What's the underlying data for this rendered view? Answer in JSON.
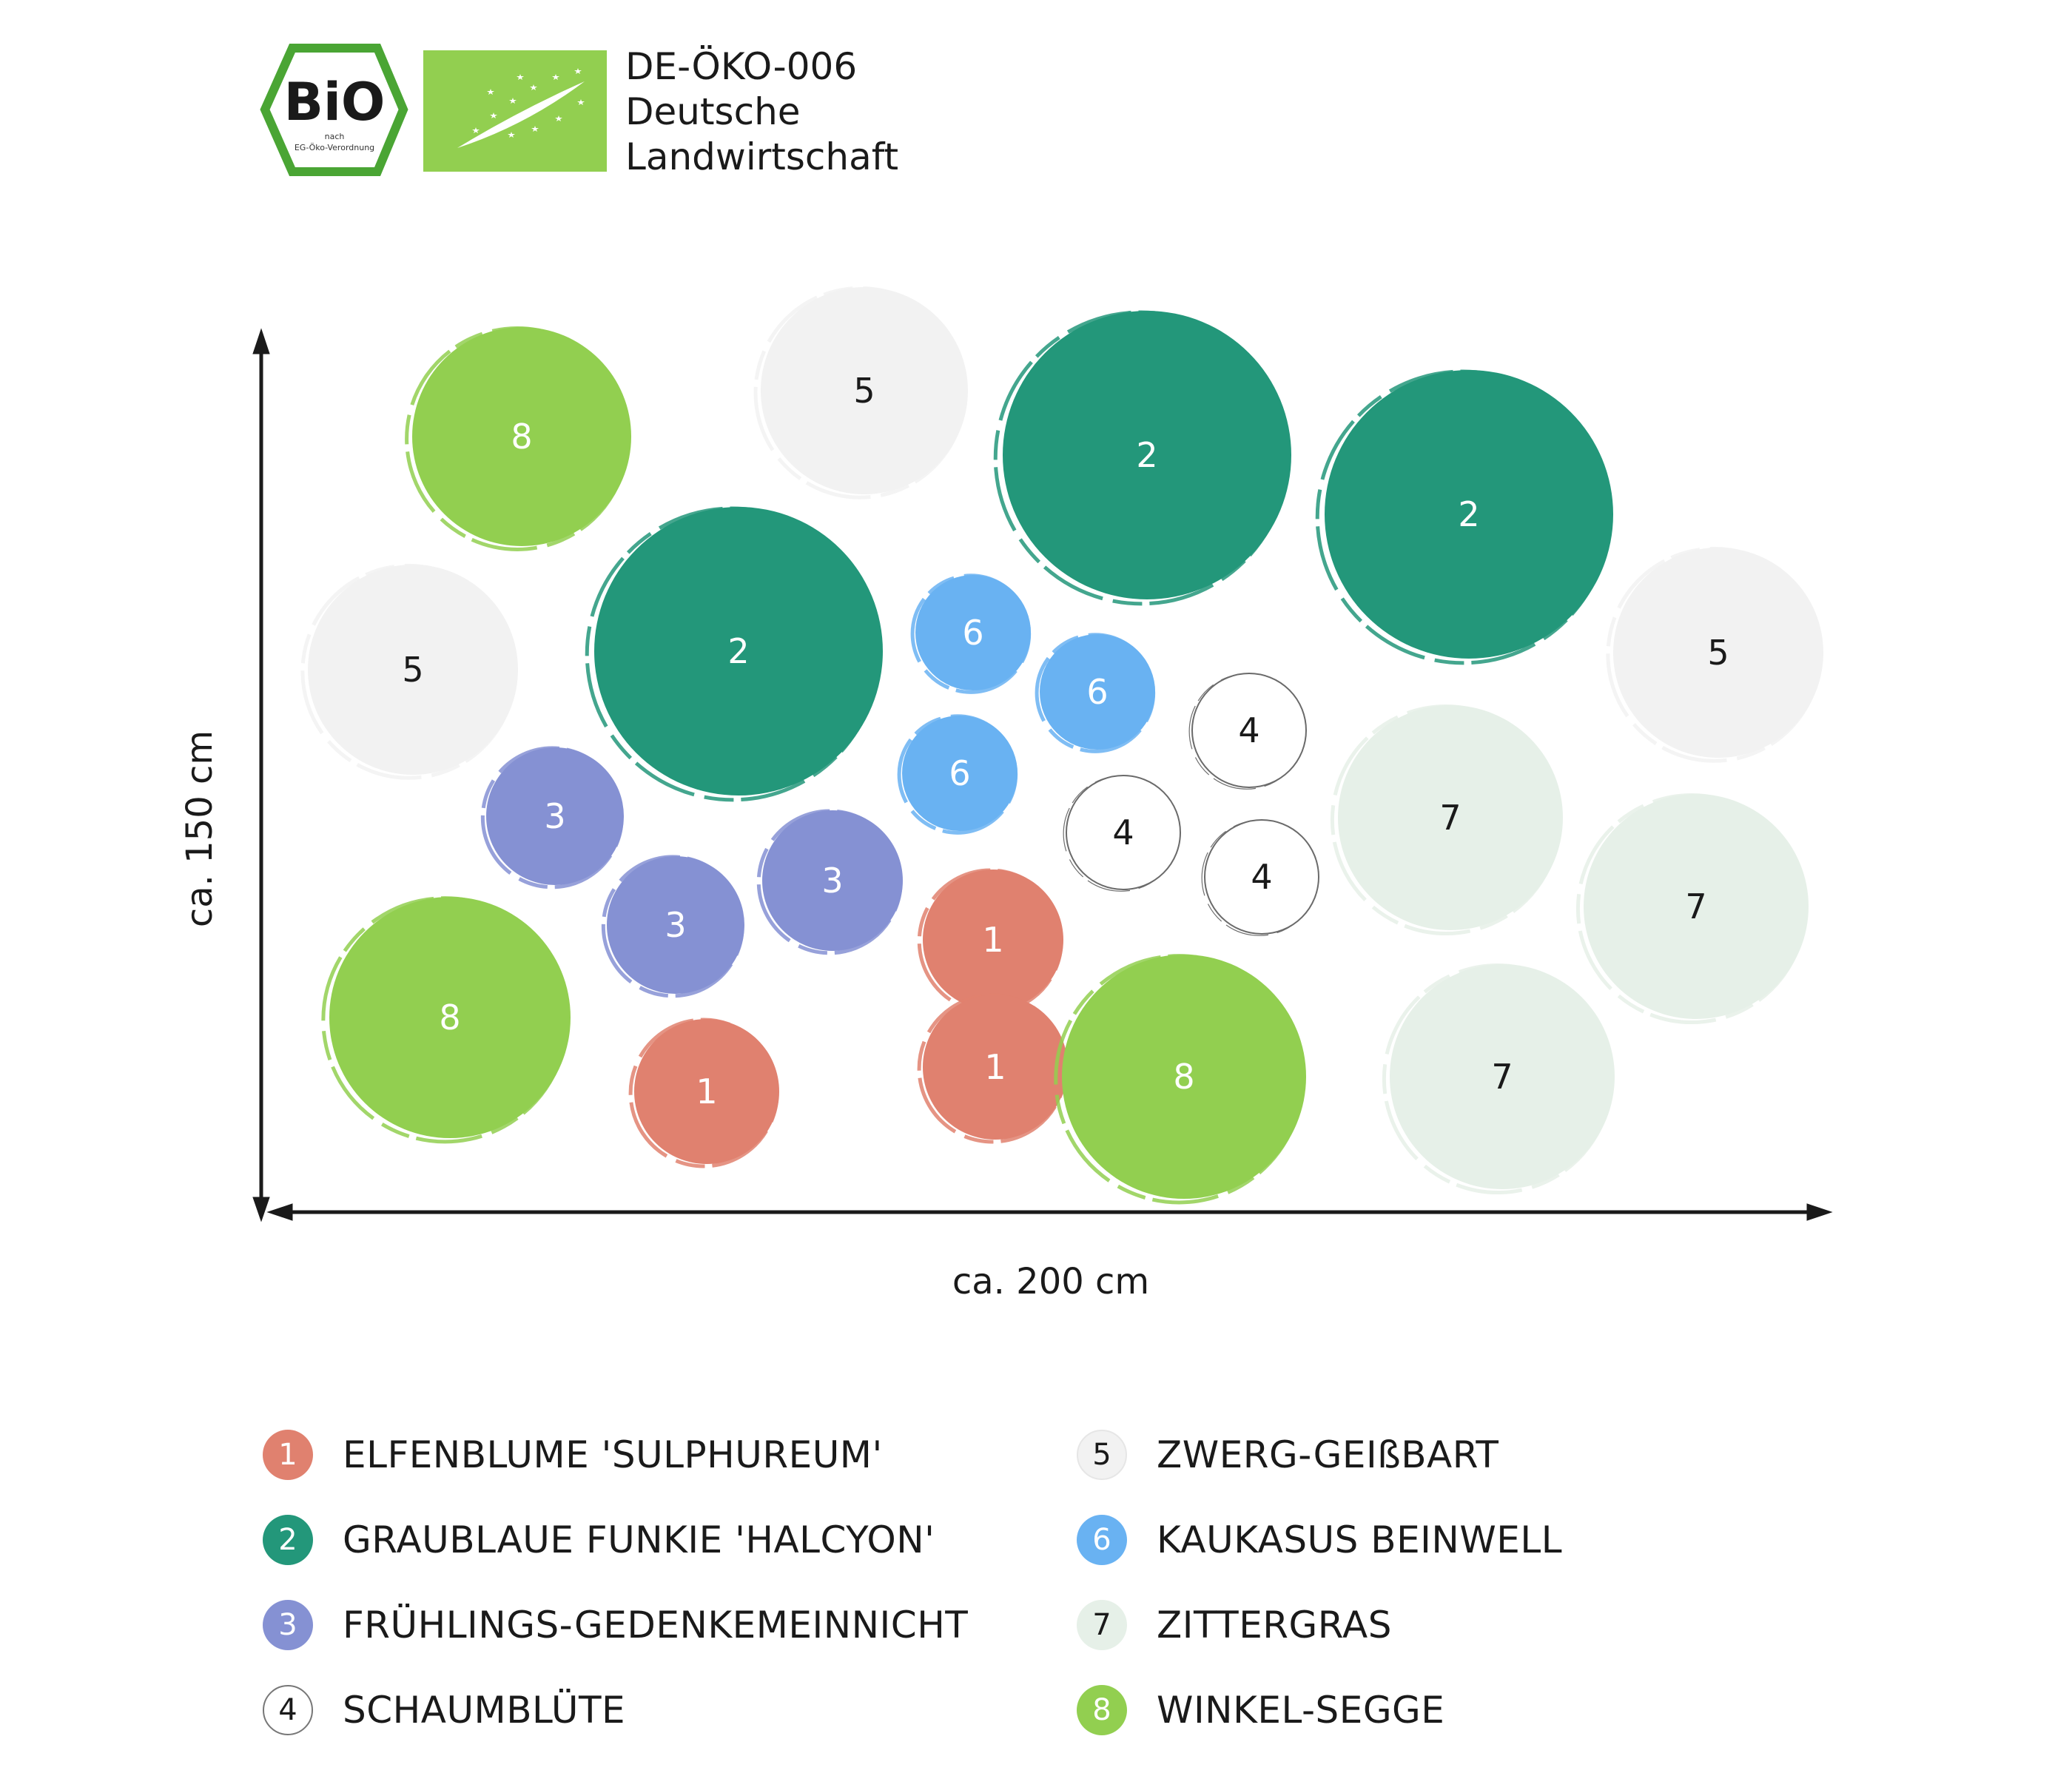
{
  "certification": {
    "bio_seal_text": "BiO",
    "bio_seal_subtext": [
      "nach",
      "EG-Öko-Verordnung"
    ],
    "lines": [
      "DE-ÖKO-006",
      "Deutsche",
      "Landwirtschaft"
    ]
  },
  "colors": {
    "1": "#e0816f",
    "2": "#23977a",
    "3": "#8591d3",
    "4": "#ffffff",
    "5": "#f2f2f2",
    "6": "#69b2f2",
    "7": "#e6f0e8",
    "8": "#92cf50",
    "eu_leaf_bg": "#92cf50",
    "bio_seal_green": "#4aa534"
  },
  "axes": {
    "x_label": "ca. 200 cm",
    "y_label": "ca. 150 cm"
  },
  "plants": [
    {
      "num": "8",
      "type": 8
    },
    {
      "num": "5",
      "type": 5
    },
    {
      "num": "2",
      "type": 2
    },
    {
      "num": "2",
      "type": 2
    },
    {
      "num": "5",
      "type": 5
    },
    {
      "num": "2",
      "type": 2
    },
    {
      "num": "6",
      "type": 6
    },
    {
      "num": "6",
      "type": 6
    },
    {
      "num": "5",
      "type": 5
    },
    {
      "num": "4",
      "type": 4
    },
    {
      "num": "6",
      "type": 6
    },
    {
      "num": "3",
      "type": 3
    },
    {
      "num": "4",
      "type": 4
    },
    {
      "num": "7",
      "type": 7
    },
    {
      "num": "4",
      "type": 4
    },
    {
      "num": "3",
      "type": 3
    },
    {
      "num": "3",
      "type": 3
    },
    {
      "num": "1",
      "type": 1
    },
    {
      "num": "7",
      "type": 7
    },
    {
      "num": "8",
      "type": 8
    },
    {
      "num": "1",
      "type": 1
    },
    {
      "num": "1",
      "type": 1
    },
    {
      "num": "8",
      "type": 8
    },
    {
      "num": "7",
      "type": 7
    }
  ],
  "legend": [
    {
      "num": "1",
      "label": "ELFENBLUME 'SULPHUREUM'"
    },
    {
      "num": "2",
      "label": "GRAUBLAUE FUNKIE 'HALCYON'"
    },
    {
      "num": "3",
      "label": "FRÜHLINGS-GEDENKEMEINNICHT"
    },
    {
      "num": "4",
      "label": "SCHAUMBLÜTE"
    },
    {
      "num": "5",
      "label": "ZWERG-GEIßBART"
    },
    {
      "num": "6",
      "label": "KAUKASUS BEINWELL"
    },
    {
      "num": "7",
      "label": "ZITTERGRAS"
    },
    {
      "num": "8",
      "label": "WINKEL-SEGGE"
    }
  ]
}
